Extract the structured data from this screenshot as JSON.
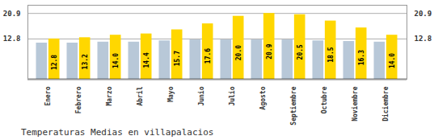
{
  "chart_data": {
    "type": "bar",
    "title": "Temperaturas Medias en villapalacios",
    "categories": [
      "Enero",
      "Febrero",
      "Marzo",
      "Abril",
      "Mayo",
      "Junio",
      "Julio",
      "Agosto",
      "Septiembre",
      "Octubre",
      "Noviembre",
      "Diciembre"
    ],
    "series": [
      {
        "color": "#B8C8D8",
        "values": [
          11.5,
          11.5,
          11.8,
          11.8,
          12.2,
          12.5,
          12.5,
          12.5,
          12.5,
          12.2,
          12.0,
          11.8
        ]
      },
      {
        "color": "#FFD700",
        "values": [
          12.8,
          13.2,
          14.0,
          14.4,
          15.7,
          17.6,
          20.0,
          20.9,
          20.5,
          18.5,
          16.3,
          14.0
        ],
        "value_labels": [
          "12.8",
          "13.2",
          "14.0",
          "14.4",
          "15.7",
          "17.6",
          "20.0",
          "20.9",
          "20.5",
          "18.5",
          "16.3",
          "14.0"
        ],
        "data_labels": true
      }
    ],
    "ylim": [
      0,
      23.5
    ],
    "yticks": [
      12.8,
      20.9
    ],
    "y2lim": [
      0,
      23.5
    ],
    "y2ticks": [
      12.8,
      20.9
    ],
    "grid": true
  }
}
